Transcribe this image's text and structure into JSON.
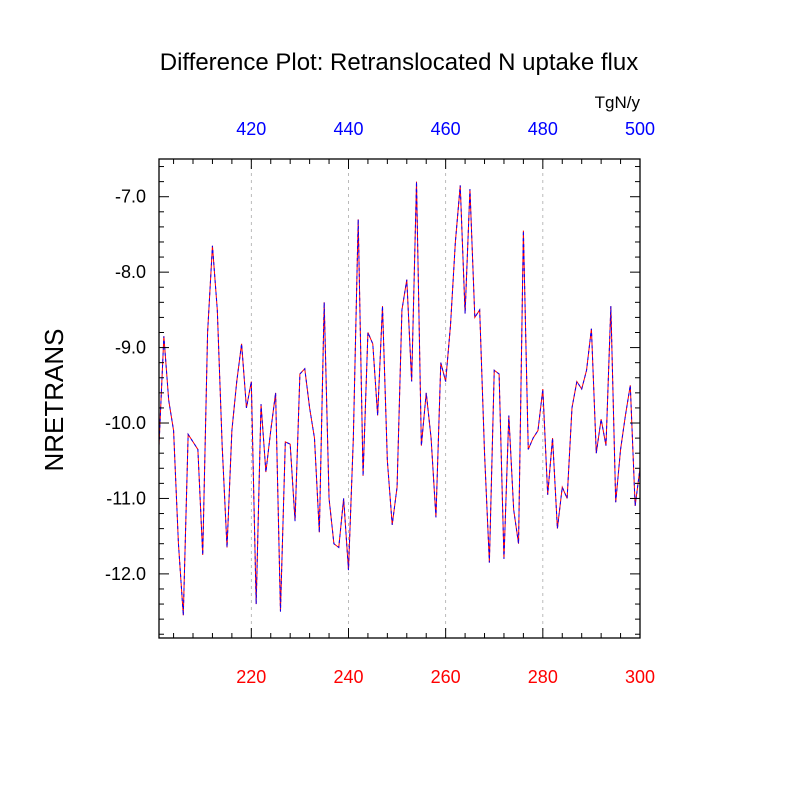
{
  "chart_data": {
    "type": "line",
    "title": "Difference Plot: Retranslocated N uptake flux",
    "units": "TgN/y",
    "ylabel": "NRETRANS",
    "xlabel": "",
    "xlim_bottom": [
      201,
      300
    ],
    "xlim_top": [
      401,
      500
    ],
    "ylim": [
      -12.85,
      -6.5
    ],
    "x_ticks_bottom": [
      220,
      240,
      260,
      280,
      300
    ],
    "x_ticks_top": [
      420,
      440,
      460,
      480,
      500
    ],
    "y_ticks": [
      -7.0,
      -8.0,
      -9.0,
      -10.0,
      -11.0,
      -12.0
    ],
    "y_tick_labels": [
      "-7.0",
      "-8.0",
      "-9.0",
      "-10.0",
      "-11.0",
      "-12.0"
    ],
    "grid": "vertical-dashed",
    "legend": "none",
    "colors": {
      "series_a": "#ff0000",
      "series_b": "#0000ff",
      "bottom_axis": "#ff0000",
      "top_axis": "#0000ff",
      "grid": "#aaaaaa"
    },
    "series": [
      {
        "x": [
          201,
          202,
          203,
          204,
          205,
          206,
          207,
          208,
          209,
          210,
          211,
          212,
          213,
          214,
          215,
          216,
          217,
          218,
          219,
          220,
          221,
          222,
          223,
          224,
          225,
          226,
          227,
          228,
          229,
          230,
          231,
          232,
          233,
          234,
          235,
          236,
          237,
          238,
          239,
          240,
          241,
          242,
          243,
          244,
          245,
          246,
          247,
          248,
          249,
          250,
          251,
          252,
          253,
          254,
          255,
          256,
          257,
          258,
          259,
          260,
          261,
          262,
          263,
          264,
          265,
          266,
          267,
          268,
          269,
          270,
          271,
          272,
          273,
          274,
          275,
          276,
          277,
          278,
          279,
          280,
          281,
          282,
          283,
          284,
          285,
          286,
          287,
          288,
          289,
          290,
          291,
          292,
          293,
          294,
          295,
          296,
          297,
          298,
          299,
          300
        ],
        "values": [
          -10.3,
          -8.85,
          -9.7,
          -10.1,
          -11.6,
          -12.55,
          -10.15,
          -10.25,
          -10.35,
          -11.75,
          -8.8,
          -7.65,
          -8.5,
          -10.3,
          -11.65,
          -10.1,
          -9.45,
          -8.95,
          -9.8,
          -9.45,
          -12.4,
          -9.75,
          -10.65,
          -10.1,
          -9.6,
          -12.5,
          -10.25,
          -10.28,
          -11.3,
          -9.35,
          -9.28,
          -9.8,
          -10.2,
          -11.45,
          -8.4,
          -11.0,
          -11.6,
          -11.65,
          -11.0,
          -11.95,
          -10.2,
          -7.3,
          -10.7,
          -8.8,
          -8.95,
          -9.9,
          -8.45,
          -10.5,
          -11.35,
          -10.85,
          -8.5,
          -8.1,
          -9.45,
          -6.8,
          -10.3,
          -9.6,
          -10.2,
          -11.25,
          -9.2,
          -9.45,
          -8.7,
          -7.6,
          -6.85,
          -8.55,
          -6.9,
          -8.6,
          -8.5,
          -10.4,
          -11.85,
          -9.3,
          -9.35,
          -11.8,
          -9.9,
          -11.15,
          -11.6,
          -7.45,
          -10.35,
          -10.2,
          -10.1,
          -9.55,
          -10.95,
          -10.2,
          -11.4,
          -10.85,
          -11.0,
          -9.8,
          -9.45,
          -9.55,
          -9.3,
          -8.75,
          -10.4,
          -9.95,
          -10.3,
          -8.45,
          -11.05,
          -10.35,
          -9.9,
          -9.5,
          -11.1,
          -10.6
        ]
      }
    ]
  }
}
